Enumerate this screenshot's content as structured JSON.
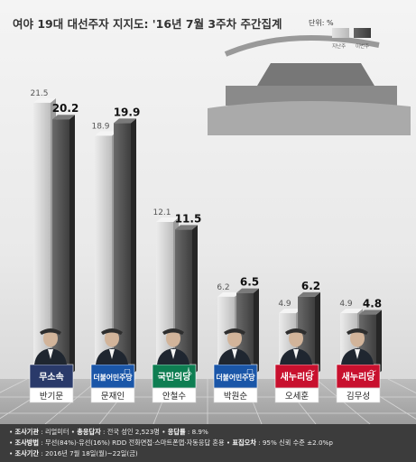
{
  "chart_data": {
    "type": "bar",
    "title": "여야 19대 대선주자 지지도: '16년 7월 3주차 주간집계",
    "unit": "단위: %",
    "legend": [
      {
        "label": "지난주",
        "color": "#c9c9c9"
      },
      {
        "label": "이번주",
        "color": "#4d4d4d"
      }
    ],
    "ylim": [
      0,
      25
    ],
    "categories": [
      "반기문",
      "문재인",
      "안철수",
      "박원순",
      "오세훈",
      "김무성"
    ],
    "parties": [
      "무소속",
      "더불어민주당",
      "국민의당",
      "더불어민주당",
      "새누리당",
      "새누리당"
    ],
    "party_colors": [
      "#2a3a6a",
      "#1a56a8",
      "#0e7e52",
      "#1a56a8",
      "#c8102e",
      "#c8102e"
    ],
    "series": [
      {
        "name": "지난주",
        "values": [
          21.5,
          18.9,
          12.1,
          6.2,
          4.9,
          4.9
        ]
      },
      {
        "name": "이번주",
        "values": [
          20.2,
          19.9,
          11.5,
          6.5,
          6.2,
          4.8
        ]
      }
    ]
  },
  "footer": {
    "line1_label1": "조사기관",
    "line1_value1": "리얼미터",
    "line1_label2": "총응답자",
    "line1_value2": "전국 성인 2,523명",
    "line1_label3": "응답률",
    "line1_value3": "8.9%",
    "line2_label1": "조사방법",
    "line2_value1": "무선(84%)·유선(16%) RDD 전화면접·스마트폰앱·자동응답 혼용",
    "line2_label2": "표집오차",
    "line2_value2": "95% 신뢰 수준 ±2.0%p",
    "line3_label1": "조사기간",
    "line3_value1": "2016년 7월 18일(월)~22일(금)"
  }
}
